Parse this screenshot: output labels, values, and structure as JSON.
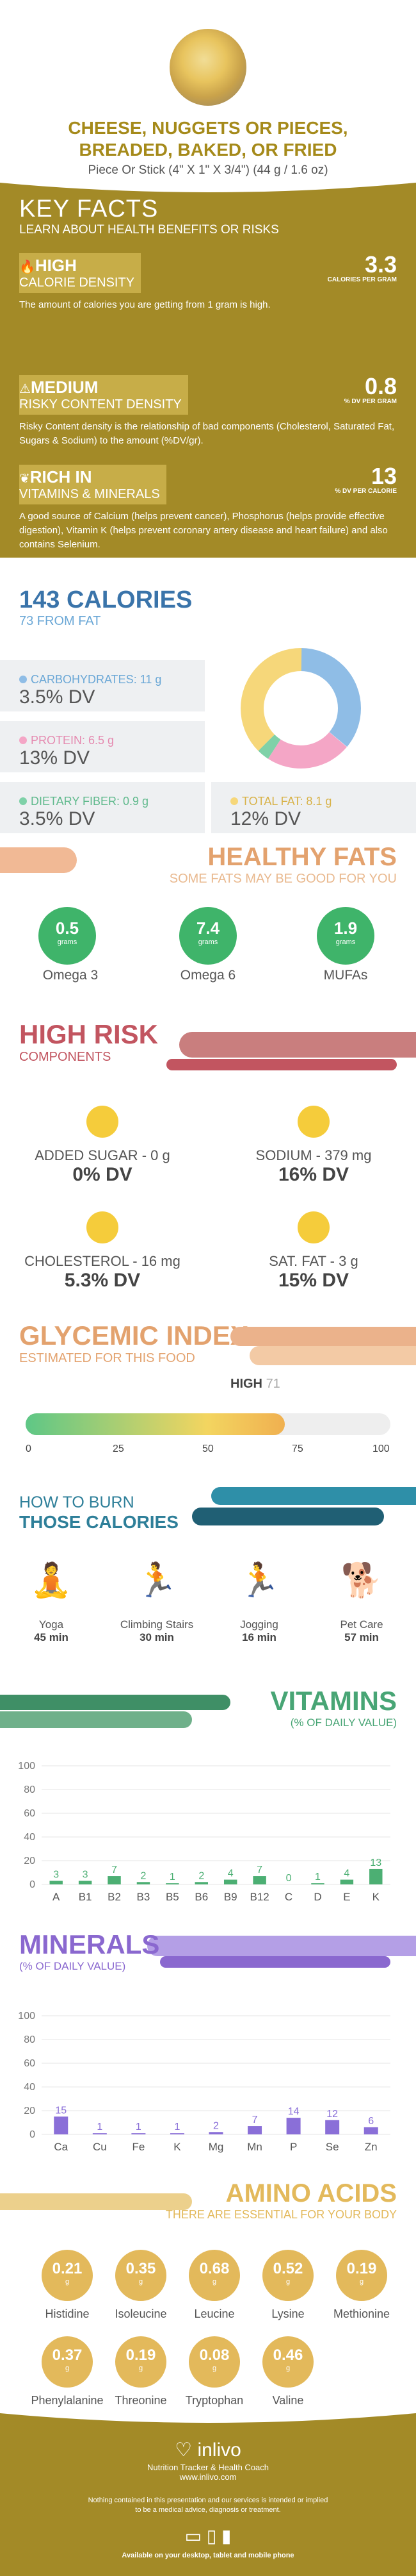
{
  "header": {
    "title": "CHEESE, NUGGETS OR PIECES, BREADED, BAKED, OR FRIED",
    "serving": "Piece Or Stick (4\" X 1\" X 3/4\") (44 g / 1.6 oz)"
  },
  "key_facts": {
    "title": "KEY FACTS",
    "subtitle": "LEARN ABOUT HEALTH BENEFITS OR RISKS",
    "items": [
      {
        "level": "HIGH",
        "label": "CALORIE DENSITY",
        "value": "3.3",
        "unit": "CALORIES PER GRAM",
        "desc": "The amount of calories you are getting from 1 gram is high."
      },
      {
        "level": "MEDIUM",
        "label": "RISKY CONTENT DENSITY",
        "value": "0.8",
        "unit": "% DV PER GRAM",
        "desc": "Risky Content density is the relationship of bad components (Cholesterol, Saturated Fat, Sugars & Sodium) to the amount (%DV/gr)."
      },
      {
        "level": "RICH IN",
        "label": "VITAMINS & MINERALS",
        "value": "13",
        "unit": "% DV PER CALORIE",
        "desc": "A good source of Calcium (helps prevent cancer), Phosphorus (helps provide effective digestion), Vitamin K (helps prevent coronary artery disease and heart failure) and also contains Selenium."
      }
    ]
  },
  "calories": {
    "title": "143 CALORIES",
    "from_fat": "73 FROM FAT",
    "carbs": {
      "label": "CARBOHYDRATES: 11 g",
      "dv": "3.5% DV",
      "color": "#8fbde6"
    },
    "protein": {
      "label": "PROTEIN: 6.5 g",
      "dv": "13% DV",
      "color": "#f4a6c6"
    },
    "fiber": {
      "label": "DIETARY FIBER: 0.9 g",
      "dv": "3.5% DV",
      "color": "#7fd1a8"
    },
    "fat": {
      "label": "TOTAL FAT: 8.1 g",
      "dv": "12% DV",
      "color": "#f6d77a"
    }
  },
  "healthy_fats": {
    "title": "HEALTHY FATS",
    "subtitle": "SOME FATS MAY BE GOOD FOR YOU",
    "items": [
      {
        "value": "0.5",
        "unit": "grams",
        "label": "Omega 3"
      },
      {
        "value": "7.4",
        "unit": "grams",
        "label": "Omega 6"
      },
      {
        "value": "1.9",
        "unit": "grams",
        "label": "MUFAs"
      }
    ]
  },
  "high_risk": {
    "title": "HIGH RISK",
    "subtitle": "COMPONENTS",
    "items": [
      {
        "label": "ADDED SUGAR - 0 g",
        "dv": "0% DV"
      },
      {
        "label": "SODIUM - 379 mg",
        "dv": "16% DV"
      },
      {
        "label": "CHOLESTEROL - 16 mg",
        "dv": "5.3% DV"
      },
      {
        "label": "SAT. FAT - 3 g",
        "dv": "15% DV"
      }
    ]
  },
  "glycemic": {
    "title": "GLYCEMIC INDEX",
    "subtitle": "ESTIMATED FOR THIS FOOD",
    "level": "HIGH",
    "value": "71",
    "ticks": [
      "0",
      "25",
      "50",
      "75",
      "100"
    ]
  },
  "burn": {
    "title1": "HOW TO BURN",
    "title2": "THOSE CALORIES",
    "items": [
      {
        "label": "Yoga",
        "value": "45 min"
      },
      {
        "label": "Climbing Stairs",
        "value": "30 min"
      },
      {
        "label": "Jogging",
        "value": "16 min"
      },
      {
        "label": "Pet Care",
        "value": "57 min"
      }
    ]
  },
  "vitamins": {
    "title": "VITAMINS",
    "subtitle": "(% OF DAILY VALUE)"
  },
  "minerals": {
    "title": "MINERALS",
    "subtitle": "(% OF DAILY VALUE)"
  },
  "chart_data": [
    {
      "type": "bar",
      "title": "VITAMINS",
      "ylim": [
        0,
        100
      ],
      "yticks": [
        "100",
        "80",
        "60",
        "40",
        "20",
        "0"
      ],
      "categories": [
        "A",
        "B1",
        "B2",
        "B3",
        "B5",
        "B6",
        "B9",
        "B12",
        "C",
        "D",
        "E",
        "K"
      ],
      "values": [
        3,
        3,
        7,
        2,
        1,
        2,
        4,
        7,
        0,
        1,
        4,
        13
      ],
      "color": "#4caf73"
    },
    {
      "type": "bar",
      "title": "MINERALS",
      "ylim": [
        0,
        100
      ],
      "yticks": [
        "100",
        "80",
        "60",
        "40",
        "20",
        "0"
      ],
      "categories": [
        "Ca",
        "Cu",
        "Fe",
        "K",
        "Mg",
        "Mn",
        "P",
        "Se",
        "Zn"
      ],
      "values": [
        15,
        1,
        1,
        1,
        2,
        7,
        14,
        12,
        6
      ],
      "color": "#8a6fd8"
    }
  ],
  "amino": {
    "title": "AMINO ACIDS",
    "subtitle": "THERE ARE ESSENTIAL FOR YOUR BODY",
    "items": [
      {
        "value": "0.21",
        "unit": "g",
        "label": "Histidine"
      },
      {
        "value": "0.35",
        "unit": "g",
        "label": "Isoleucine"
      },
      {
        "value": "0.68",
        "unit": "g",
        "label": "Leucine"
      },
      {
        "value": "0.52",
        "unit": "g",
        "label": "Lysine"
      },
      {
        "value": "0.19",
        "unit": "g",
        "label": "Methionine"
      },
      {
        "value": "0.37",
        "unit": "g",
        "label": "Phenylalanine"
      },
      {
        "value": "0.19",
        "unit": "g",
        "label": "Threonine"
      },
      {
        "value": "0.08",
        "unit": "g",
        "label": "Tryptophan"
      },
      {
        "value": "0.46",
        "unit": "g",
        "label": "Valine"
      }
    ]
  },
  "footer": {
    "brand": "inlivo",
    "tagline": "Nutrition Tracker & Health Coach",
    "url": "www.inlivo.com",
    "disclaimer": "Nothing contained in this presentation and our services is intended or implied to be a medical advice, diagnosis or treatment.",
    "available": "Available on your desktop, tablet and mobile phone"
  }
}
